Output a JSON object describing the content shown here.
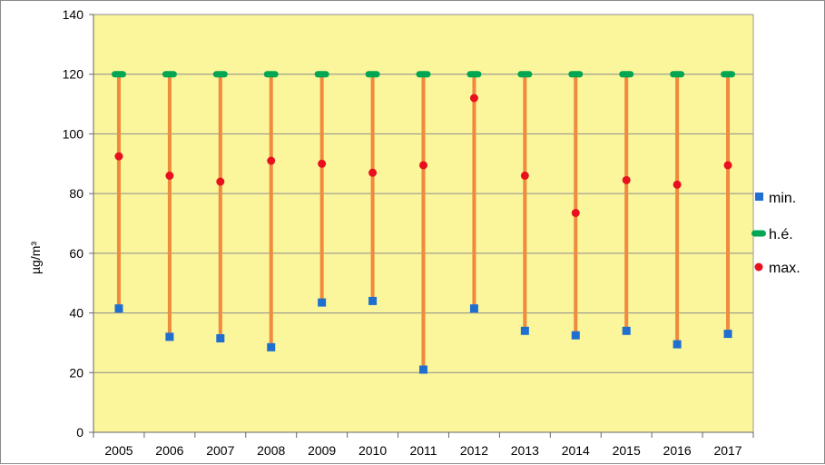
{
  "chart_data": {
    "type": "scatter",
    "categories": [
      "2005",
      "2006",
      "2007",
      "2008",
      "2009",
      "2010",
      "2011",
      "2012",
      "2013",
      "2014",
      "2015",
      "2016",
      "2017"
    ],
    "ylabel": "µg/m³",
    "ylim": [
      0,
      140
    ],
    "yticks": [
      0,
      20,
      40,
      60,
      80,
      100,
      120,
      140
    ],
    "ytick_labels": [
      "0",
      "20",
      "40",
      "60",
      "80",
      "100",
      "120",
      "140"
    ],
    "grid": true,
    "legend_placement": "right",
    "series": [
      {
        "name": "min.",
        "marker": "square",
        "color": "#1f6fd1",
        "values": [
          41.5,
          32,
          31.5,
          28.5,
          43.5,
          44,
          21,
          41.5,
          34,
          32.5,
          34,
          29.5,
          33
        ]
      },
      {
        "name": "h.é.",
        "marker": "dash",
        "color": "#00a651",
        "values": [
          120,
          120,
          120,
          120,
          120,
          120,
          120,
          120,
          120,
          120,
          120,
          120,
          120
        ]
      },
      {
        "name": "max.",
        "marker": "circle",
        "color": "#e8101e",
        "values": [
          92.5,
          86,
          84,
          91,
          90,
          87,
          89.5,
          112,
          86,
          73.5,
          84.5,
          83,
          89.5
        ]
      }
    ],
    "range_line_color": "#f08a3c",
    "plot_background": "#fbf59b"
  }
}
